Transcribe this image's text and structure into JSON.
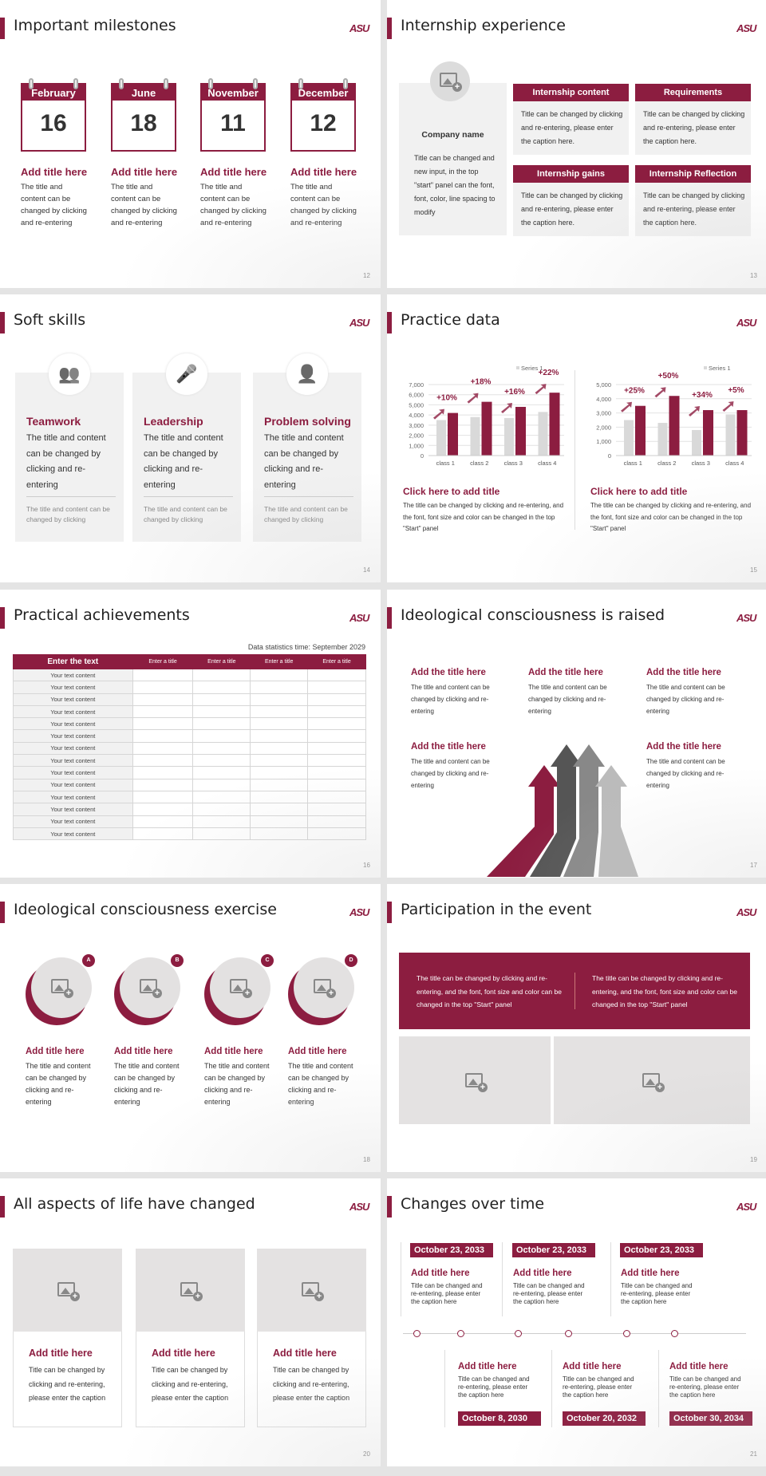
{
  "logo": "ASU",
  "colors": {
    "accent": "#8c1d40",
    "grey_bar": "#d9d9d9",
    "panel": "#f1f1f1"
  },
  "s12": {
    "number": "12",
    "title": "Important milestones",
    "items": [
      {
        "month": "February",
        "day": "16",
        "title": "Add title here",
        "text": "The title and content can be changed by clicking and re-entering"
      },
      {
        "month": "June",
        "day": "18",
        "title": "Add title here",
        "text": "The title and content can be changed by clicking and re-entering"
      },
      {
        "month": "November",
        "day": "11",
        "title": "Add title here",
        "text": "The title and content can be changed by clicking and re-entering"
      },
      {
        "month": "December",
        "day": "12",
        "title": "Add title here",
        "text": "The title and content can be changed by clicking and re-entering"
      }
    ]
  },
  "s13": {
    "number": "13",
    "title": "Internship experience",
    "company": "Company name",
    "company_text": "Title can be changed and new input, in the top \"start\" panel can the font, font, color, line spacing to modify",
    "cards": [
      {
        "title": "Internship content",
        "text": "Title can be changed by clicking and re-entering, please enter the caption here."
      },
      {
        "title": "Requirements",
        "text": "Title can be changed by clicking and re-entering, please enter the caption here."
      },
      {
        "title": "Internship gains",
        "text": "Title can be changed by clicking and re-entering, please enter the caption here."
      },
      {
        "title": "Internship Reflection",
        "text": "Title can be changed by clicking and re-entering, please enter the caption here."
      }
    ]
  },
  "s14": {
    "number": "14",
    "title": "Soft skills",
    "items": [
      {
        "icon": "team-icon",
        "title": "Teamwork",
        "text": "The title and content can be changed by clicking and re-entering",
        "note": "The title and content can be changed by clicking"
      },
      {
        "icon": "podium-speaker-icon",
        "title": "Leadership",
        "text": "The title and content can be changed by clicking and re-entering",
        "note": "The title and content can be changed by clicking"
      },
      {
        "icon": "person-question-icon",
        "title": "Problem solving",
        "text": "The title and content can be changed by clicking and re-entering",
        "note": "The title and content can be changed by clicking"
      }
    ]
  },
  "s15": {
    "number": "15",
    "title": "Practice data",
    "blocks": [
      {
        "title": "Click here to add title",
        "text": "The title can be changed by clicking and re-entering, and the font, font size and color can be changed in the top \"Start\" panel"
      },
      {
        "title": "Click here to add title",
        "text": "The title can be changed by clicking and re-entering, and the font, font size and color can be changed in the top \"Start\" panel"
      }
    ]
  },
  "chart_data": [
    {
      "type": "bar",
      "categories": [
        "class 1",
        "class 2",
        "class 3",
        "class 4"
      ],
      "ylim": [
        0,
        7000
      ],
      "yticks": [
        "0",
        "1,000",
        "2,000",
        "3,000",
        "4,000",
        "5,000",
        "6,000",
        "7,000"
      ],
      "legend": "Series 1",
      "legend_position": "top-right",
      "grid": true,
      "series": [
        {
          "name": "Series 1",
          "color": "#d9d9d9",
          "values": [
            3500,
            3800,
            3700,
            4300
          ]
        },
        {
          "color": "#8c1d40",
          "values": [
            4200,
            5300,
            4800,
            6200
          ]
        }
      ],
      "annotations": [
        "+10%",
        "+18%",
        "+16%",
        "+22%"
      ]
    },
    {
      "type": "bar",
      "categories": [
        "class 1",
        "class 2",
        "class 3",
        "class 4"
      ],
      "ylim": [
        0,
        5000
      ],
      "yticks": [
        "0",
        "1,000",
        "2,000",
        "3,000",
        "4,000",
        "5,000"
      ],
      "legend": "Series 1",
      "legend_position": "top-right",
      "grid": true,
      "series": [
        {
          "name": "Series 1",
          "color": "#d9d9d9",
          "values": [
            2500,
            2300,
            1800,
            2900
          ]
        },
        {
          "color": "#8c1d40",
          "values": [
            3500,
            4200,
            3200,
            3200
          ]
        }
      ],
      "annotations": [
        "+25%",
        "+50%",
        "+34%",
        "+5%"
      ]
    }
  ],
  "s16": {
    "number": "16",
    "title": "Practical achievements",
    "stat_time": "Data statistics time: September 2029",
    "headers": [
      "Enter the text",
      "Enter a title",
      "Enter a title",
      "Enter a title",
      "Enter a title"
    ],
    "rows": [
      "Your text content",
      "Your text content",
      "Your text content",
      "Your text content",
      "Your text content",
      "Your text content",
      "Your text content",
      "Your text content",
      "Your text content",
      "Your text content",
      "Your text content",
      "Your text content",
      "Your text content",
      "Your text content"
    ]
  },
  "s17": {
    "number": "17",
    "title": "Ideological consciousness is raised",
    "items": [
      {
        "title": "Add the title here",
        "text": "The title and content can be changed by clicking and re-entering"
      },
      {
        "title": "Add the title here",
        "text": "The title and content can be changed by clicking and re-entering"
      },
      {
        "title": "Add the title here",
        "text": "The title and content can be changed by clicking and re-entering"
      },
      {
        "title": "Add the title here",
        "text": "The title and content can be changed by clicking and re-entering"
      },
      {
        "title": "Add the title here",
        "text": "The title and content can be changed by clicking and re-entering"
      }
    ]
  },
  "s18": {
    "number": "18",
    "title": "Ideological consciousness exercise",
    "items": [
      {
        "badge": "A",
        "title": "Add title here",
        "text": "The title and content can be changed by clicking and re-entering"
      },
      {
        "badge": "B",
        "title": "Add title here",
        "text": "The title and content can be changed by clicking and re-entering"
      },
      {
        "badge": "C",
        "title": "Add title here",
        "text": "The title and content can be changed by clicking and re-entering"
      },
      {
        "badge": "D",
        "title": "Add title here",
        "text": "The title and content can be changed by clicking and re-entering"
      }
    ]
  },
  "s19": {
    "number": "19",
    "title": "Participation in the event",
    "texts": [
      "The title can be changed by clicking and re-entering, and the font, font size and color can be changed in the top \"Start\" panel",
      "The title can be changed by clicking and re-entering, and the font, font size and color can be changed in the top \"Start\" panel"
    ]
  },
  "s20": {
    "number": "20",
    "title": "All aspects of life have changed",
    "items": [
      {
        "title": "Add title here",
        "text": "Title can be changed by clicking and re-entering, please enter the caption"
      },
      {
        "title": "Add title here",
        "text": "Title can be changed by clicking and re-entering, please enter the caption"
      },
      {
        "title": "Add title here",
        "text": "Title can be changed by clicking and re-entering, please enter the caption"
      }
    ]
  },
  "s21": {
    "number": "21",
    "title": "Changes over time",
    "top": [
      {
        "date": "October 23, 2033",
        "title": "Add title here",
        "text": "Title can be changed and re-entering, please enter the caption here"
      },
      {
        "date": "October 23, 2033",
        "title": "Add title here",
        "text": "Title can be changed and re-entering, please enter the caption here"
      },
      {
        "date": "October 23, 2033",
        "title": "Add title here",
        "text": "Title can be changed and re-entering, please enter the caption here"
      }
    ],
    "bottom": [
      {
        "date": "October 8, 2030",
        "title": "Add title here",
        "text": "Title can be changed and re-entering, please enter the caption here"
      },
      {
        "date": "October 20, 2032",
        "title": "Add title here",
        "text": "Title can be changed and re-entering, please enter the caption here"
      },
      {
        "date": "October 30, 2034",
        "title": "Add title here",
        "text": "Title can be changed and re-entering, please enter the caption here"
      }
    ]
  }
}
